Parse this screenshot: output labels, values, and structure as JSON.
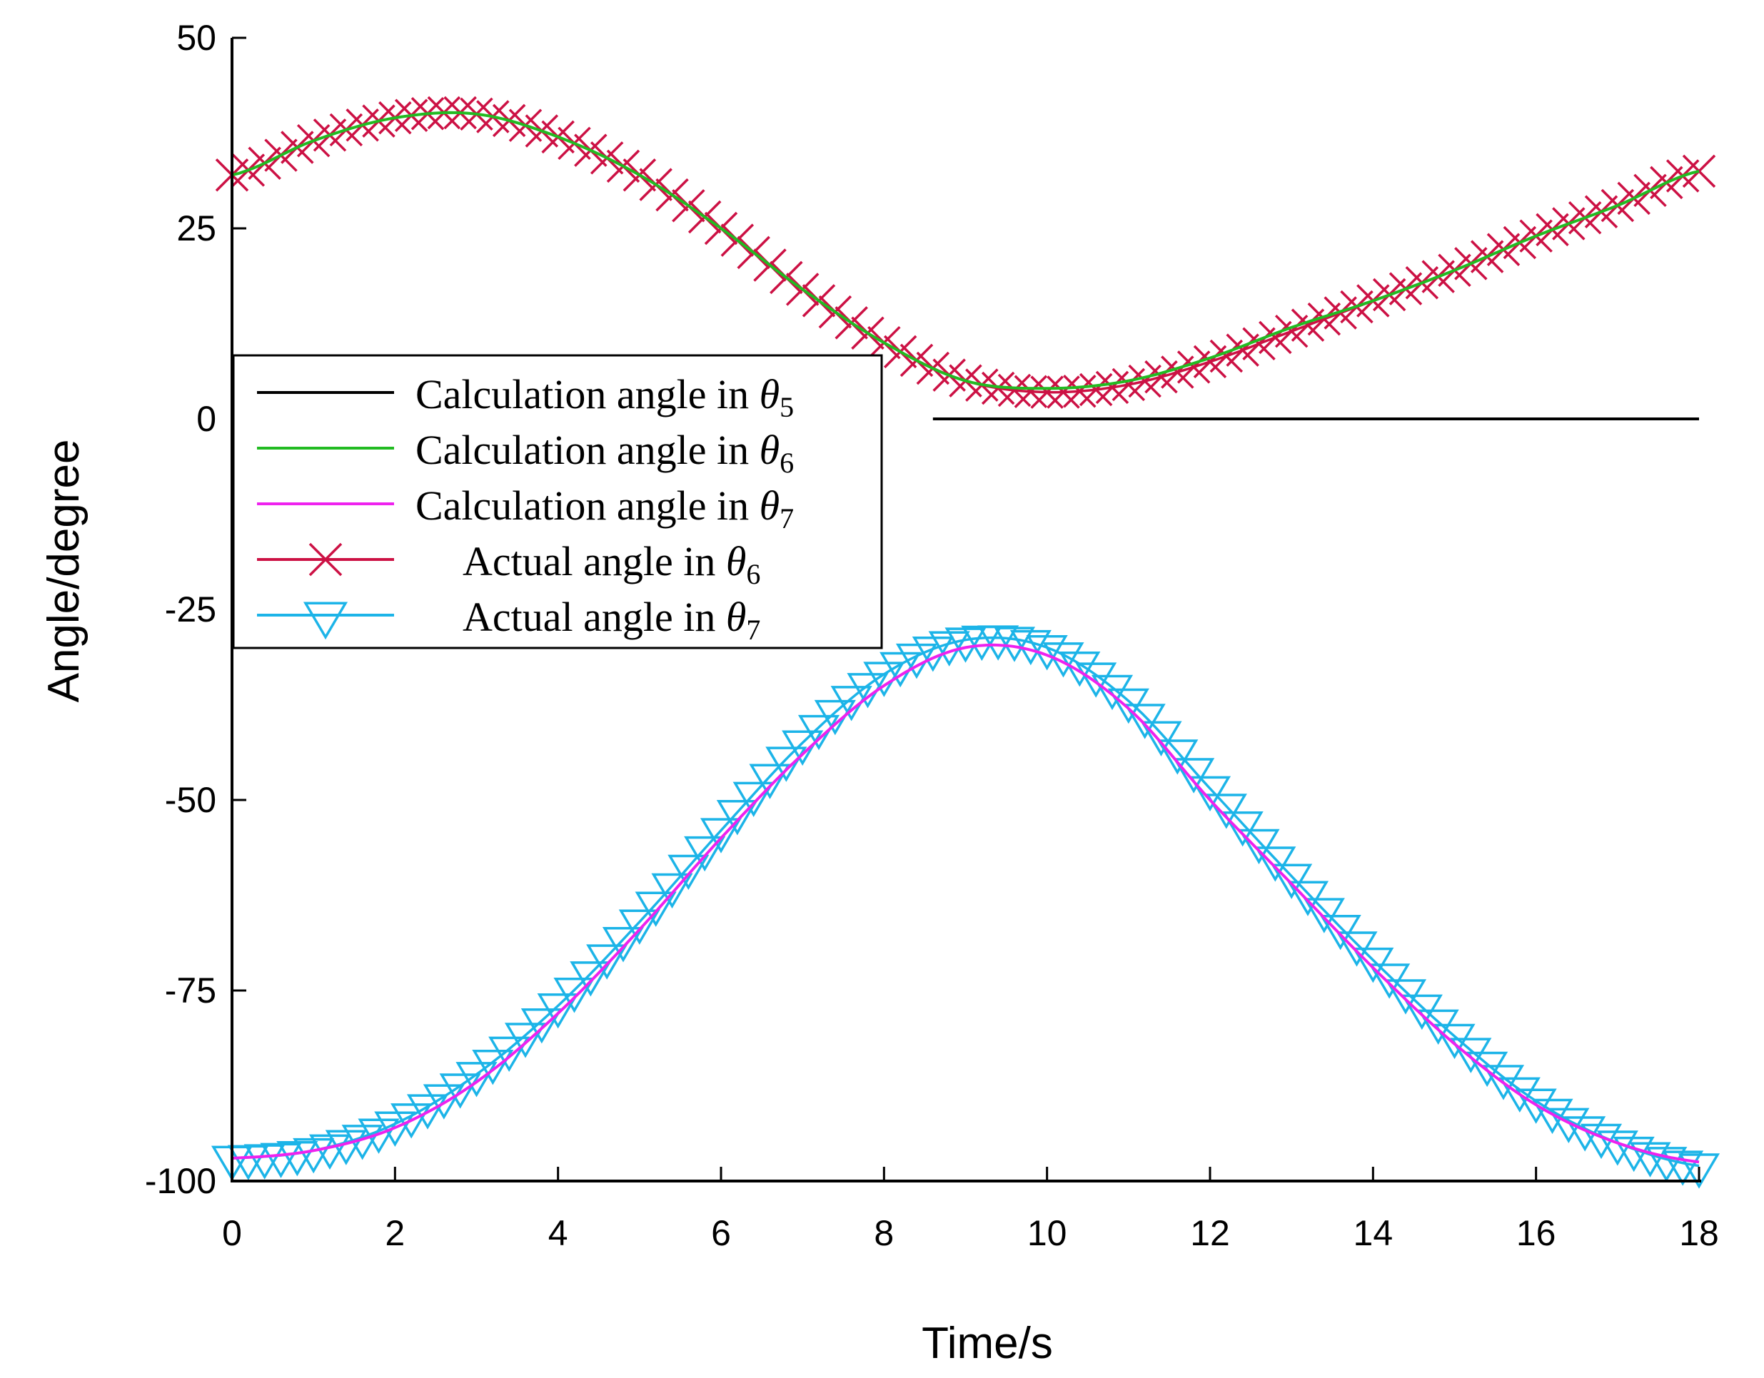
{
  "chart_data": {
    "type": "line",
    "xlabel": "Time/s",
    "ylabel": "Angle/degree",
    "xlim": [
      0,
      18
    ],
    "ylim": [
      -100,
      50
    ],
    "xticks": [
      0,
      2,
      4,
      6,
      8,
      10,
      12,
      14,
      16,
      18
    ],
    "yticks": [
      50,
      25,
      0,
      -25,
      -50,
      -75,
      -100
    ],
    "legend_position": "upper-left",
    "legend": [
      {
        "text": "Calculation angle in ",
        "symbol": "θ",
        "sub": "5",
        "color": "#000000",
        "marker": "none"
      },
      {
        "text": "Calculation angle in ",
        "symbol": "θ",
        "sub": "6",
        "color": "#22bb22",
        "marker": "none"
      },
      {
        "text": "Calculation angle in ",
        "symbol": "θ",
        "sub": "7",
        "color": "#ee22ee",
        "marker": "none"
      },
      {
        "text": "Actual angle in ",
        "symbol": "θ",
        "sub": "6",
        "color": "#cc1144",
        "marker": "x"
      },
      {
        "text": "Actual angle in ",
        "symbol": "θ",
        "sub": "7",
        "color": "#1cb4e8",
        "marker": "triangle-down"
      }
    ],
    "x": [
      0,
      1,
      2,
      3,
      4,
      5,
      6,
      7,
      8,
      9,
      10,
      11,
      12,
      13,
      14,
      15,
      16,
      17,
      18
    ],
    "series": [
      {
        "name": "Calculation angle in θ5",
        "color": "#000000",
        "marker": "none",
        "values": [
          0,
          0,
          0,
          0,
          0,
          0,
          0,
          0,
          0,
          0,
          0,
          0,
          0,
          0,
          0,
          0,
          0,
          0,
          0
        ]
      },
      {
        "name": "Calculation angle in θ6",
        "color": "#22bb22",
        "marker": "none",
        "values": [
          32,
          36.5,
          39.5,
          40,
          37,
          32,
          25,
          17,
          10,
          5,
          4,
          5,
          8,
          12,
          15.5,
          19.5,
          24,
          28,
          32.5
        ]
      },
      {
        "name": "Calculation angle in θ7",
        "color": "#ee22ee",
        "marker": "none",
        "values": [
          -97,
          -96,
          -93,
          -87,
          -78,
          -67,
          -55,
          -44,
          -35,
          -30,
          -31,
          -38,
          -50,
          -61,
          -72,
          -82,
          -90,
          -95,
          -97.5
        ]
      },
      {
        "name": "Actual angle in θ6",
        "color": "#cc1144",
        "marker": "x",
        "values": [
          32,
          36.5,
          39.5,
          40,
          37,
          32,
          25,
          17,
          10,
          5,
          3.5,
          4.5,
          7.5,
          11.5,
          15.5,
          19.5,
          24,
          28,
          32.5
        ]
      },
      {
        "name": "Actual angle in θ7",
        "color": "#1cb4e8",
        "marker": "triangle-down",
        "values": [
          -97,
          -96,
          -92.5,
          -86,
          -77,
          -66,
          -54,
          -42.5,
          -33.5,
          -29,
          -30,
          -37,
          -48.5,
          -60,
          -71,
          -81,
          -89.5,
          -95,
          -98
        ]
      }
    ]
  }
}
